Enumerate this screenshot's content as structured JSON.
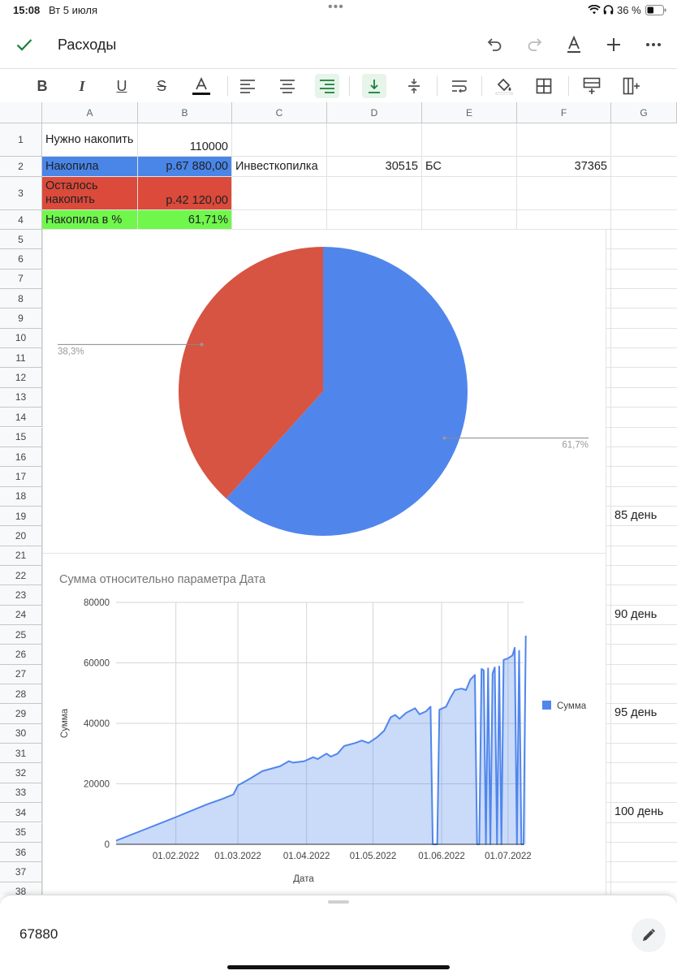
{
  "status_bar": {
    "time": "15:08",
    "date": "Вт 5 июля",
    "battery": "36 %"
  },
  "app": {
    "title": "Расходы"
  },
  "colors": {
    "accent_green": "#188038",
    "blue": "#4a86e8",
    "red": "#db4a3a",
    "green": "#6ff74b"
  },
  "columns": [
    "A",
    "B",
    "C",
    "D",
    "E",
    "F",
    "G"
  ],
  "rows": [
    "1",
    "2",
    "3",
    "4",
    "5",
    "6",
    "7",
    "8",
    "9",
    "10",
    "11",
    "12",
    "13",
    "14",
    "15",
    "16",
    "17",
    "18",
    "19",
    "20",
    "21",
    "22",
    "23",
    "24",
    "25",
    "26",
    "27",
    "28",
    "29",
    "30",
    "31",
    "32",
    "33",
    "34",
    "35",
    "36",
    "37",
    "38"
  ],
  "cells": {
    "A1": "Нужно накопить",
    "B1": "110000",
    "A2": "Накопила",
    "B2": "р.67 880,00",
    "C2": "Инвесткопилка",
    "D2": "30515",
    "E2": "БС",
    "F2": "37365",
    "A3": "Осталось накопить",
    "B3": "р.42 120,00",
    "A4": "Накопила в %",
    "B4": "61,71%"
  },
  "side_cells": {
    "G19": "85 день",
    "G24": "90 день",
    "G29": "95 день",
    "G34": "100 день"
  },
  "chart_data": [
    {
      "type": "pie",
      "slices": [
        {
          "label": "61,7%",
          "value": 61.7,
          "color": "#5086ec"
        },
        {
          "label": "38,3%",
          "value": 38.3,
          "color": "#d75442"
        }
      ]
    },
    {
      "type": "area",
      "title": "Сумма относительно параметра Дата",
      "xlabel": "Дата",
      "ylabel": "Сумма",
      "legend": {
        "position": "top-right",
        "entries": [
          "Сумма"
        ]
      },
      "series_color": "#5086ec",
      "ylim": [
        0,
        80000
      ],
      "yticks": [
        0,
        20000,
        40000,
        60000,
        80000
      ],
      "xlim": [
        "2022-01-05",
        "2022-07-08"
      ],
      "xticks": [
        "01.02.2022",
        "01.03.2022",
        "01.04.2022",
        "01.05.2022",
        "01.06.2022",
        "01.07.2022"
      ],
      "xtick_dates": [
        "2022-02-01",
        "2022-03-01",
        "2022-04-01",
        "2022-05-01",
        "2022-06-01",
        "2022-07-01"
      ],
      "grid": true,
      "series": [
        {
          "name": "Сумма",
          "points": [
            [
              "2022-01-05",
              1200
            ],
            [
              "2022-01-20",
              5500
            ],
            [
              "2022-02-01",
              9000
            ],
            [
              "2022-02-15",
              13200
            ],
            [
              "2022-02-22",
              15000
            ],
            [
              "2022-02-27",
              16500
            ],
            [
              "2022-03-01",
              19500
            ],
            [
              "2022-03-06",
              21500
            ],
            [
              "2022-03-12",
              24200
            ],
            [
              "2022-03-20",
              25800
            ],
            [
              "2022-03-24",
              27500
            ],
            [
              "2022-03-26",
              27000
            ],
            [
              "2022-03-31",
              27500
            ],
            [
              "2022-04-04",
              28800
            ],
            [
              "2022-04-06",
              28200
            ],
            [
              "2022-04-10",
              30000
            ],
            [
              "2022-04-12",
              29000
            ],
            [
              "2022-04-15",
              30000
            ],
            [
              "2022-04-18",
              32500
            ],
            [
              "2022-04-23",
              33500
            ],
            [
              "2022-04-26",
              34300
            ],
            [
              "2022-04-29",
              33500
            ],
            [
              "2022-05-03",
              35500
            ],
            [
              "2022-05-06",
              37500
            ],
            [
              "2022-05-09",
              42000
            ],
            [
              "2022-05-11",
              42800
            ],
            [
              "2022-05-13",
              41500
            ],
            [
              "2022-05-16",
              43500
            ],
            [
              "2022-05-20",
              45000
            ],
            [
              "2022-05-22",
              43000
            ],
            [
              "2022-05-25",
              44000
            ],
            [
              "2022-05-27",
              45500
            ],
            [
              "2022-05-28",
              0
            ],
            [
              "2022-05-30",
              0
            ],
            [
              "2022-05-31",
              44500
            ],
            [
              "2022-06-03",
              45500
            ],
            [
              "2022-06-05",
              48500
            ],
            [
              "2022-06-07",
              51000
            ],
            [
              "2022-06-10",
              51500
            ],
            [
              "2022-06-12",
              51000
            ],
            [
              "2022-06-14",
              54500
            ],
            [
              "2022-06-16",
              56000
            ],
            [
              "2022-06-17",
              0
            ],
            [
              "2022-06-18",
              0
            ],
            [
              "2022-06-19",
              58000
            ],
            [
              "2022-06-20",
              57500
            ],
            [
              "2022-06-21",
              0
            ],
            [
              "2022-06-22",
              58200
            ],
            [
              "2022-06-23",
              0
            ],
            [
              "2022-06-24",
              56500
            ],
            [
              "2022-06-25",
              58500
            ],
            [
              "2022-06-26",
              0
            ],
            [
              "2022-06-27",
              58800
            ],
            [
              "2022-06-28",
              0
            ],
            [
              "2022-06-29",
              61000
            ],
            [
              "2022-07-01",
              61500
            ],
            [
              "2022-07-03",
              62500
            ],
            [
              "2022-07-04",
              65000
            ],
            [
              "2022-07-05",
              0
            ],
            [
              "2022-07-06",
              64000
            ],
            [
              "2022-07-07",
              0
            ],
            [
              "2022-07-08",
              0
            ],
            [
              "2022-07-09",
              69000
            ]
          ]
        }
      ]
    }
  ],
  "formula_bar": {
    "value": "67880"
  }
}
